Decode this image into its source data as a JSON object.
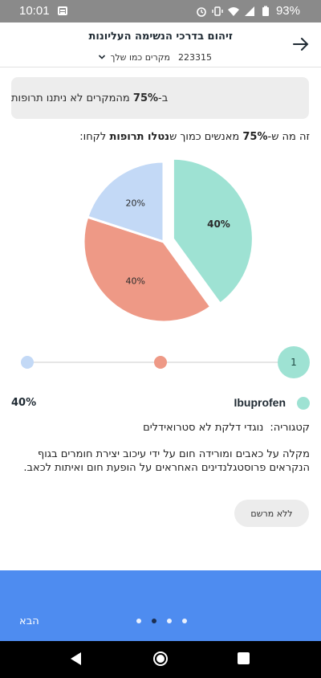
{
  "status_bar": {
    "time": "10:01",
    "battery_percent": "93%"
  },
  "header": {
    "title": "זיהום בדרכי הנשימה העליונות",
    "case_count": "223315",
    "subtitle": "מקרים כמו שלך"
  },
  "banner": {
    "pct": "75%",
    "text": "מהמקרים לא ניתנו תרופות",
    "prefix": "ב-"
  },
  "question": {
    "part1": "זה מה ש-",
    "pct": "75%",
    "part2": " מאנשים כמוך ש",
    "bold": "נטלו תרופות",
    "part3": " לקחו:"
  },
  "chart_data": {
    "type": "pie",
    "slices": [
      {
        "label": "40%",
        "value": 40,
        "color": "#9ee2d3",
        "highlighted": true
      },
      {
        "label": "40%",
        "value": 40,
        "color": "#ee9986",
        "highlighted": false
      },
      {
        "label": "20%",
        "value": 20,
        "color": "#c3d9f6",
        "highlighted": false
      }
    ]
  },
  "selector": {
    "active_index_label": "1",
    "colors": [
      "#c3d9f6",
      "#ee9986",
      "#9ee2d3"
    ]
  },
  "drug": {
    "name": "Ibuprofen",
    "pct": "40%",
    "category_label": "קטגוריה:",
    "category_value": "נוגדי דלקת לא סטרואידלים",
    "description": "מקלה על כאבים ומורידה חום על ידי עיכוב יצירת חומרים בגוף הנקראים פרוסטגלנדינים האחראים על הופעת חום ואיתות לכאב."
  },
  "rx_button": {
    "label": "ללא מרשם"
  },
  "footer": {
    "next_label": "הבא",
    "pages": 4,
    "active_page": 2
  }
}
